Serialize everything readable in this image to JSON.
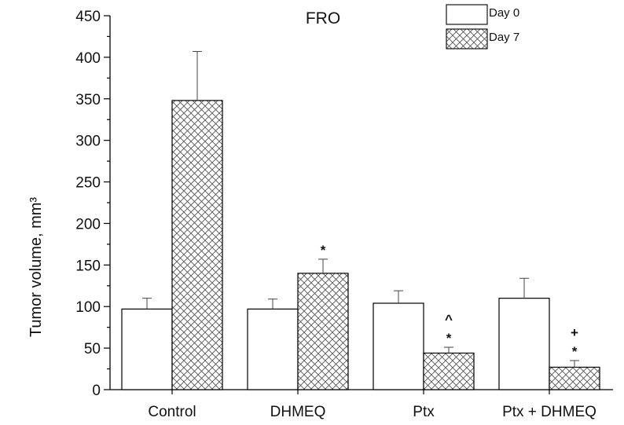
{
  "chart_data": {
    "type": "bar",
    "title": "FRO",
    "xlabel": "",
    "ylabel": "Tumor volume, mm³",
    "ylim": [
      0,
      450
    ],
    "yticks": [
      0,
      50,
      100,
      150,
      200,
      250,
      300,
      350,
      400,
      450
    ],
    "categories": [
      "Control",
      "DHMEQ",
      "Ptx",
      "Ptx + DHMEQ"
    ],
    "series": [
      {
        "name": "Day 0",
        "values": [
          97,
          97,
          104,
          110
        ],
        "errors": [
          13,
          12,
          15,
          24
        ],
        "pattern": "none"
      },
      {
        "name": "Day 7",
        "values": [
          348,
          140,
          44,
          27
        ],
        "errors": [
          59,
          17,
          7,
          8
        ],
        "pattern": "crosshatch"
      }
    ],
    "annotations": [
      {
        "category": "DHMEQ",
        "series": "Day 7",
        "marks": [
          "*"
        ]
      },
      {
        "category": "Ptx",
        "series": "Day 7",
        "marks": [
          "*",
          "^"
        ]
      },
      {
        "category": "Ptx + DHMEQ",
        "series": "Day 7",
        "marks": [
          "*",
          "+"
        ]
      }
    ],
    "legend_position": "top-right",
    "grid": false
  }
}
